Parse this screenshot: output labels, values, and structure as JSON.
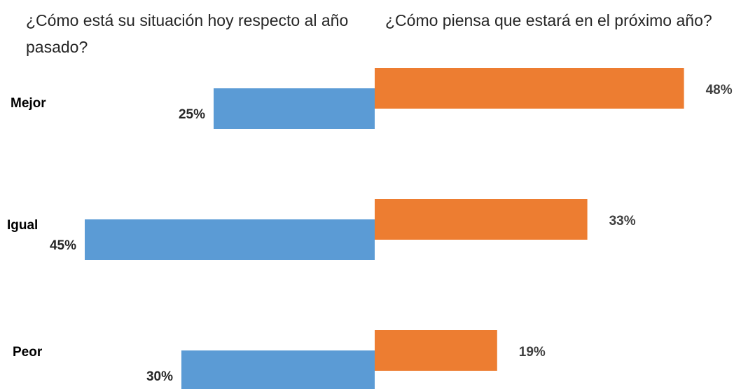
{
  "chart_data": {
    "type": "butterfly-bar",
    "categories": [
      "Mejor",
      "Igual",
      "Peor"
    ],
    "series": [
      {
        "name": "¿Cómo está su situación hoy respecto al año pasado?",
        "color": "#5b9bd5",
        "values": [
          25,
          45,
          30
        ],
        "value_labels": [
          "25%",
          "45%",
          "30%"
        ]
      },
      {
        "name": "¿Cómo piensa que estará en el próximo año?",
        "color": "#ed7d31",
        "values": [
          48,
          33,
          19
        ],
        "value_labels": [
          "48%",
          "33%",
          "19%"
        ]
      }
    ]
  }
}
